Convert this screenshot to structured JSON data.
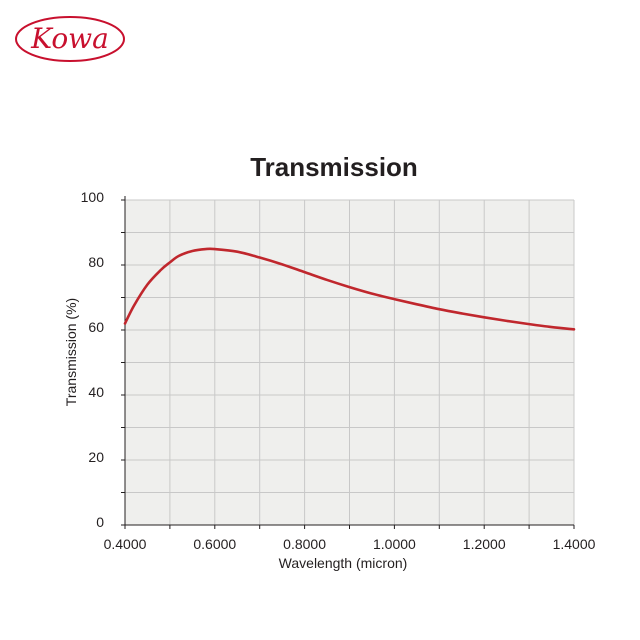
{
  "logo": {
    "text": "Kowa",
    "color": "#c8102e"
  },
  "chart_data": {
    "type": "line",
    "title": "Transmission",
    "xlabel": "Wavelength (micron)",
    "ylabel": "Transmission (%)",
    "xlim": [
      0.4,
      1.4
    ],
    "ylim": [
      0,
      100
    ],
    "x_ticks": [
      "0.4000",
      "0.6000",
      "0.8000",
      "1.0000",
      "1.2000",
      "1.4000"
    ],
    "x_tick_values": [
      0.4,
      0.6,
      0.8,
      1.0,
      1.2,
      1.4
    ],
    "y_ticks": [
      "0",
      "20",
      "40",
      "60",
      "80",
      "100"
    ],
    "y_tick_values": [
      0,
      20,
      40,
      60,
      80,
      100
    ],
    "grid": true,
    "background_color": "#efefed",
    "grid_color": "#c8c8c8",
    "line_color": "#c0272d",
    "series": [
      {
        "x": [
          0.4,
          0.42,
          0.45,
          0.48,
          0.5,
          0.52,
          0.55,
          0.58,
          0.6,
          0.65,
          0.7,
          0.75,
          0.8,
          0.85,
          0.9,
          0.95,
          1.0,
          1.05,
          1.1,
          1.15,
          1.2,
          1.25,
          1.3,
          1.35,
          1.4
        ],
        "y": [
          62.0,
          67.5,
          74.0,
          78.5,
          80.8,
          82.8,
          84.3,
          84.9,
          84.9,
          84.1,
          82.3,
          80.2,
          77.8,
          75.4,
          73.2,
          71.2,
          69.5,
          67.9,
          66.4,
          65.1,
          63.9,
          62.8,
          61.8,
          60.9,
          60.2
        ]
      }
    ]
  }
}
